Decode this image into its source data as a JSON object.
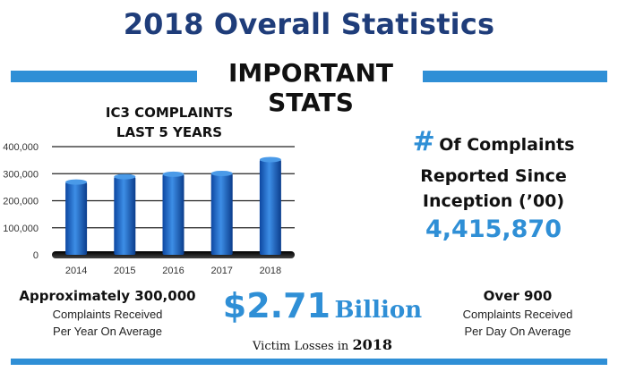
{
  "header": {
    "title": "2018 Overall Statistics",
    "subtitle": "IMPORTANT STATS"
  },
  "colors": {
    "accent": "#2f8fd6",
    "title": "#1f3d7a",
    "bar": "#1565c0"
  },
  "chart_data": {
    "type": "bar",
    "title_lines": [
      "IC3 COMPLAINTS",
      "LAST 5 YEARS"
    ],
    "categories": [
      "2014",
      "2015",
      "2016",
      "2017",
      "2018"
    ],
    "values": [
      269000,
      289000,
      298000,
      301000,
      352000
    ],
    "yticks": [
      "400,000",
      "300,000",
      "200,000",
      "100,000",
      "0"
    ],
    "ylim": [
      0,
      400000
    ],
    "grid": true
  },
  "stats": {
    "complaints_since": {
      "hash": "#",
      "line1": "Of Complaints",
      "line2": "Reported Since",
      "line3": "Inception (’00)",
      "value": "4,415,870"
    },
    "per_year": {
      "headline": "Approximately 300,000",
      "line1": "Complaints Received",
      "line2": "Per Year On Average"
    },
    "losses": {
      "amount": "$2.71",
      "unit": "Billion",
      "caption": "Victim Losses in",
      "year": "2018"
    },
    "per_day": {
      "headline": "Over 900",
      "line1": "Complaints Received",
      "line2": "Per Day On Average"
    }
  }
}
